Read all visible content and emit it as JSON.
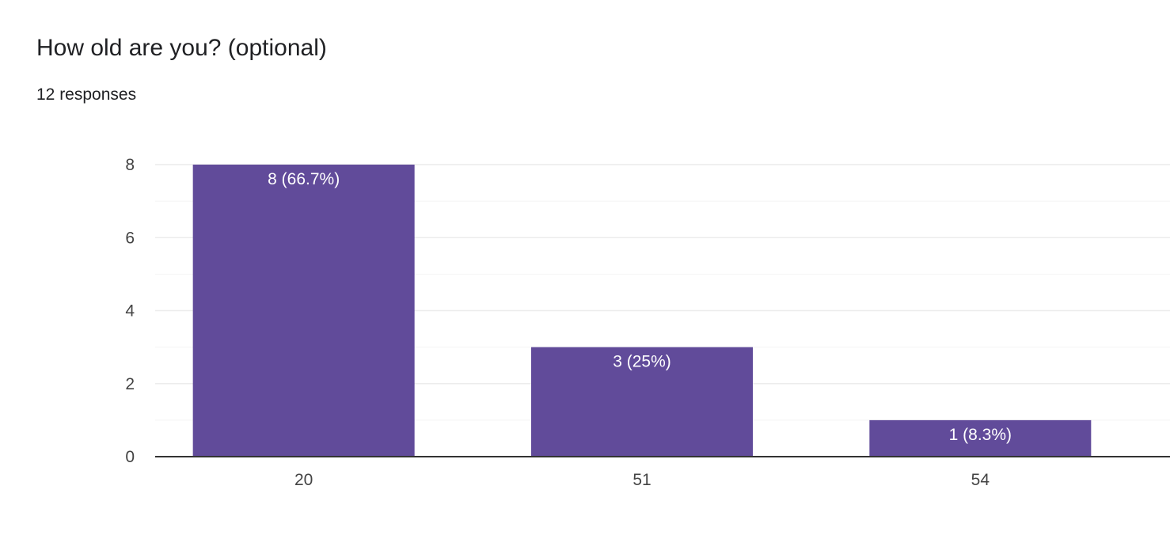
{
  "question": {
    "title": "How old are you? (optional)",
    "responses": "12 responses"
  },
  "colors": {
    "bar": "#614b9a",
    "grid": "#ececec",
    "axis": "#333333",
    "tick_text": "#444444",
    "bar_label_text": "#ffffff"
  },
  "chart_data": {
    "type": "bar",
    "title": "How old are you? (optional)",
    "categories": [
      "20",
      "51",
      "54"
    ],
    "values": [
      8,
      3,
      1
    ],
    "data_labels": [
      "8 (66.7%)",
      "3 (25%)",
      "1 (8.3%)"
    ],
    "yticks": [
      0,
      2,
      4,
      6,
      8
    ],
    "ylim": [
      0,
      8
    ],
    "xlabel": "",
    "ylabel": "",
    "grid": true,
    "legend": "none"
  }
}
